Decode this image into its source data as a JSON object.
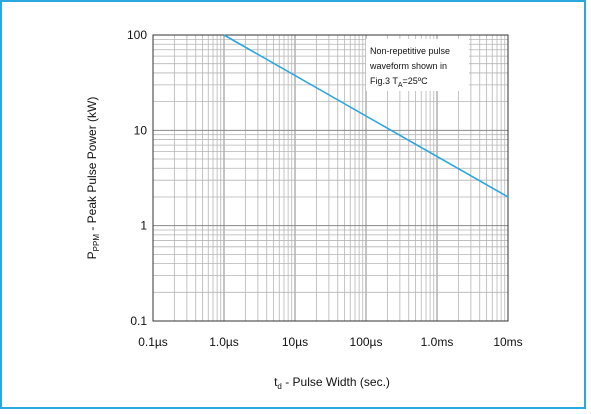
{
  "chart_data": {
    "type": "line",
    "title": "",
    "xscale": "log",
    "yscale": "log",
    "xlim": [
      1e-07,
      0.01
    ],
    "ylim": [
      0.1,
      100
    ],
    "grid": true,
    "x_ticks": [
      {
        "value": 1e-07,
        "label": "0.1µs"
      },
      {
        "value": 1e-06,
        "label": "1.0µs"
      },
      {
        "value": 1e-05,
        "label": "10µs"
      },
      {
        "value": 0.0001,
        "label": "100µs"
      },
      {
        "value": 0.001,
        "label": "1.0ms"
      },
      {
        "value": 0.01,
        "label": "10ms"
      }
    ],
    "y_ticks": [
      {
        "value": 100,
        "label": "100"
      },
      {
        "value": 10,
        "label": "10"
      },
      {
        "value": 1,
        "label": "1"
      },
      {
        "value": 0.1,
        "label": "0.1"
      }
    ],
    "xlabel": {
      "main": "t",
      "sub": "d",
      "rest": " - Pulse Width (sec.)"
    },
    "ylabel": {
      "main": "P",
      "sub": "PPM",
      "rest": " - Peak Pulse Power (kW)"
    },
    "annotation": {
      "line1": "Non-repetitive pulse",
      "line2": "waveform shown in",
      "line3_main": "Fig.3 T",
      "line3_sub": "A",
      "line3_rest": "=25ºC"
    },
    "series": [
      {
        "color": "#2aa7dd",
        "points": [
          {
            "x": 1e-06,
            "y": 100
          },
          {
            "x": 0.01,
            "y": 2
          }
        ]
      }
    ]
  }
}
